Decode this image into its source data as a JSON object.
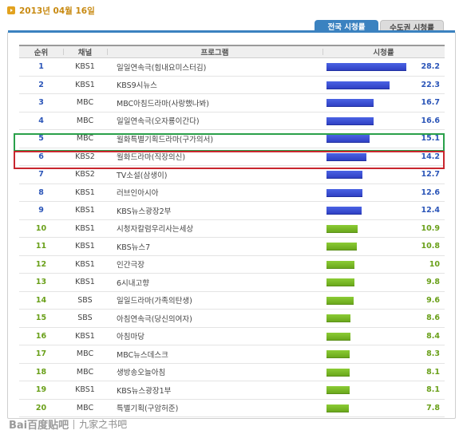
{
  "date": "2013년 04월 16일",
  "tabs": [
    {
      "label": "전국 시청률",
      "active": true
    },
    {
      "label": "수도권 시청률",
      "active": false
    }
  ],
  "table": {
    "columns": {
      "rank": "순위",
      "channel": "채널",
      "program": "프로그램",
      "rating": "시청률"
    },
    "max_rating": 28.2,
    "rows": [
      {
        "rank": "1",
        "channel": "KBS1",
        "program": "일일연속극(힘내요미스터김)",
        "rating": "28.2",
        "tier": "blue"
      },
      {
        "rank": "2",
        "channel": "KBS1",
        "program": "KBS9시뉴스",
        "rating": "22.3",
        "tier": "blue"
      },
      {
        "rank": "3",
        "channel": "MBC",
        "program": "MBC아침드라마(사랑했나봐)",
        "rating": "16.7",
        "tier": "blue"
      },
      {
        "rank": "4",
        "channel": "MBC",
        "program": "일일연속극(오자룡이간다)",
        "rating": "16.6",
        "tier": "blue"
      },
      {
        "rank": "5",
        "channel": "MBC",
        "program": "월화특별기획드라마(구가의서)",
        "rating": "15.1",
        "tier": "blue"
      },
      {
        "rank": "6",
        "channel": "KBS2",
        "program": "월화드라마(직장의신)",
        "rating": "14.2",
        "tier": "blue"
      },
      {
        "rank": "7",
        "channel": "KBS2",
        "program": "TV소설(삼생이)",
        "rating": "12.7",
        "tier": "blue"
      },
      {
        "rank": "8",
        "channel": "KBS1",
        "program": "러브인아시아",
        "rating": "12.6",
        "tier": "blue"
      },
      {
        "rank": "9",
        "channel": "KBS1",
        "program": "KBS뉴스광장2부",
        "rating": "12.4",
        "tier": "blue"
      },
      {
        "rank": "10",
        "channel": "KBS1",
        "program": "시청자칼럼우리사는세상",
        "rating": "10.9",
        "tier": "green"
      },
      {
        "rank": "11",
        "channel": "KBS1",
        "program": "KBS뉴스7",
        "rating": "10.8",
        "tier": "green"
      },
      {
        "rank": "12",
        "channel": "KBS1",
        "program": "인간극장",
        "rating": "10",
        "tier": "green"
      },
      {
        "rank": "13",
        "channel": "KBS1",
        "program": "6시내고향",
        "rating": "9.8",
        "tier": "green"
      },
      {
        "rank": "14",
        "channel": "SBS",
        "program": "일일드라마(가족의탄생)",
        "rating": "9.6",
        "tier": "green"
      },
      {
        "rank": "15",
        "channel": "SBS",
        "program": "아침연속극(당신의여자)",
        "rating": "8.6",
        "tier": "green"
      },
      {
        "rank": "16",
        "channel": "KBS1",
        "program": "아침마당",
        "rating": "8.4",
        "tier": "green"
      },
      {
        "rank": "17",
        "channel": "MBC",
        "program": "MBC뉴스데스크",
        "rating": "8.3",
        "tier": "green"
      },
      {
        "rank": "18",
        "channel": "MBC",
        "program": "생방송오늘아침",
        "rating": "8.1",
        "tier": "green"
      },
      {
        "rank": "19",
        "channel": "KBS1",
        "program": "KBS뉴스광장1부",
        "rating": "8.1",
        "tier": "green"
      },
      {
        "rank": "20",
        "channel": "MBC",
        "program": "특별기획(구암허준)",
        "rating": "7.8",
        "tier": "green"
      }
    ]
  },
  "watermark": {
    "logo": "Bai百度贴吧",
    "text": "九家之书吧"
  },
  "colors": {
    "accent_blue": "#3b82c0",
    "bar_blue": "#3a4fd4",
    "bar_green": "#7cbd2a",
    "highlight_green": "#2aa04a",
    "highlight_red": "#c8262e"
  }
}
